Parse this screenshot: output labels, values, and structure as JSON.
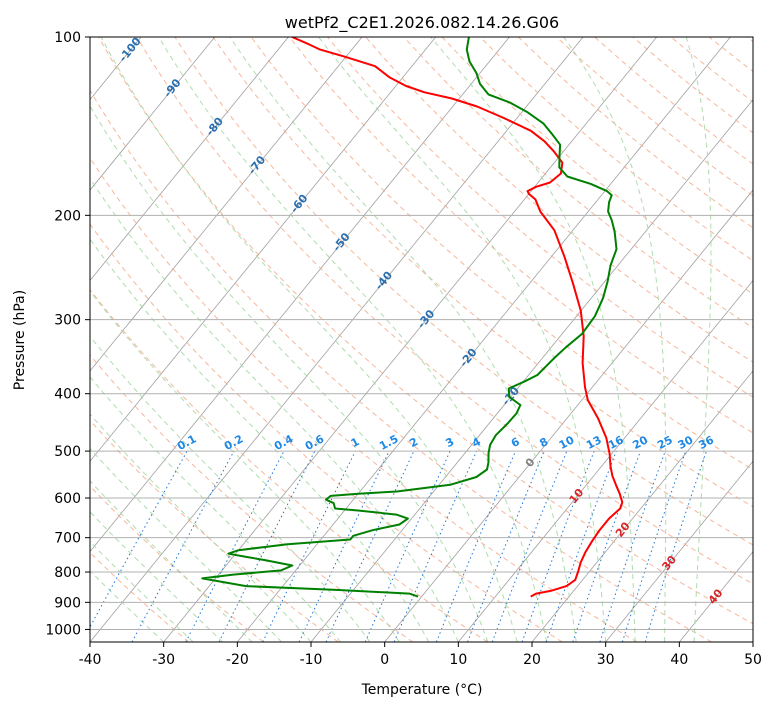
{
  "chart_data": {
    "type": "line",
    "title": "wetPf2_C2E1.2026.082.14.26.G06",
    "xlabel": "Temperature (°C)",
    "ylabel": "Pressure (hPa)",
    "xlim": [
      -40,
      50
    ],
    "ylim": [
      1050,
      100
    ],
    "x_ticks": [
      -40,
      -30,
      -20,
      -10,
      0,
      10,
      20,
      30,
      40,
      50
    ],
    "y_ticks": [
      1000,
      900,
      800,
      700,
      600,
      500,
      400,
      300,
      200,
      100
    ],
    "grid": true,
    "skewed_isotherm_labels": [
      -100,
      -90,
      -80,
      -70,
      -60,
      -50,
      -40,
      -30,
      -20,
      -10
    ],
    "skewed_isotherm_labels_red": [
      0,
      10,
      20,
      30,
      40
    ],
    "mixing_ratio_labels": [
      "0.1",
      "0.2",
      "0.4",
      "0.6",
      "1",
      "1.5",
      "2",
      "3",
      "4",
      "6",
      "8",
      "10",
      "13",
      "16",
      "20",
      "25",
      "30",
      "36"
    ],
    "colors": {
      "temperature": "#ff0000",
      "dewpoint": "#008000",
      "isotherm": "#a0a0a0",
      "dry_adiabat": "#f4a582",
      "moist_adiabat": "#a6d8a6",
      "mixing_ratio": "#1f77d4",
      "skew_label_blue": "#2a6fb0",
      "skew_label_red": "#d62728",
      "mix_label": "#1e88e5"
    },
    "series": [
      {
        "name": "Temperature",
        "points": [
          [
            14.8,
            880
          ],
          [
            15.2,
            870
          ],
          [
            17.0,
            860
          ],
          [
            18.5,
            845
          ],
          [
            19.0,
            825
          ],
          [
            18.5,
            800
          ],
          [
            17.8,
            770
          ],
          [
            17.3,
            740
          ],
          [
            17.0,
            710
          ],
          [
            16.8,
            680
          ],
          [
            16.8,
            650
          ],
          [
            17.2,
            625
          ],
          [
            16.8,
            610
          ],
          [
            15.5,
            590
          ],
          [
            14.0,
            570
          ],
          [
            12.5,
            550
          ],
          [
            11.2,
            530
          ],
          [
            9.7,
            505
          ],
          [
            7.5,
            475
          ],
          [
            4.2,
            440
          ],
          [
            0.8,
            410
          ],
          [
            -1.0,
            390
          ],
          [
            -4.0,
            355
          ],
          [
            -6.8,
            320
          ],
          [
            -10.0,
            290
          ],
          [
            -14.2,
            260
          ],
          [
            -18.2,
            235
          ],
          [
            -22.5,
            212
          ],
          [
            -26.5,
            197
          ],
          [
            -28.5,
            188
          ],
          [
            -30.0,
            184
          ],
          [
            -30.5,
            182
          ],
          [
            -29.8,
            179
          ],
          [
            -28.4,
            176
          ],
          [
            -27.9,
            170
          ],
          [
            -28.9,
            163
          ],
          [
            -31.3,
            156
          ],
          [
            -33.7,
            150
          ],
          [
            -36.7,
            144
          ],
          [
            -41.8,
            137
          ],
          [
            -46.7,
            131
          ],
          [
            -51.0,
            127
          ],
          [
            -55.4,
            124
          ],
          [
            -58.6,
            121
          ],
          [
            -61.8,
            117
          ],
          [
            -65.0,
            112
          ],
          [
            -70.1,
            108
          ],
          [
            -74.3,
            105
          ],
          [
            -76.3,
            103
          ],
          [
            -79.5,
            100
          ]
        ]
      },
      {
        "name": "Dewpoint",
        "points": [
          [
            -0.5,
            880
          ],
          [
            -2.0,
            870
          ],
          [
            -12.0,
            858
          ],
          [
            -25.0,
            845
          ],
          [
            -31.8,
            820
          ],
          [
            -28.0,
            808
          ],
          [
            -22.0,
            795
          ],
          [
            -21.0,
            780
          ],
          [
            -25.0,
            765
          ],
          [
            -28.0,
            755
          ],
          [
            -31.0,
            745
          ],
          [
            -30.0,
            735
          ],
          [
            -24.0,
            718
          ],
          [
            -16.0,
            705
          ],
          [
            -16.0,
            695
          ],
          [
            -14.0,
            680
          ],
          [
            -11.0,
            665
          ],
          [
            -10.5,
            650
          ],
          [
            -12.5,
            640
          ],
          [
            -18.0,
            630
          ],
          [
            -21.5,
            625
          ],
          [
            -22.3,
            612
          ],
          [
            -23.7,
            604
          ],
          [
            -23.5,
            595
          ],
          [
            -20.0,
            590
          ],
          [
            -15.0,
            585
          ],
          [
            -8.5,
            570
          ],
          [
            -5.8,
            553
          ],
          [
            -5.2,
            537
          ],
          [
            -5.8,
            522
          ],
          [
            -6.8,
            504
          ],
          [
            -7.5,
            488
          ],
          [
            -7.8,
            470
          ],
          [
            -7.5,
            450
          ],
          [
            -7.4,
            432
          ],
          [
            -7.8,
            418
          ],
          [
            -10.2,
            405
          ],
          [
            -11.2,
            392
          ],
          [
            -9.8,
            381
          ],
          [
            -8.8,
            372
          ],
          [
            -8.6,
            360
          ],
          [
            -8.4,
            348
          ],
          [
            -8.0,
            334
          ],
          [
            -7.3,
            317
          ],
          [
            -7.5,
            296
          ],
          [
            -8.4,
            276
          ],
          [
            -9.6,
            259
          ],
          [
            -11.0,
            243
          ],
          [
            -12.0,
            228
          ],
          [
            -14.2,
            213
          ],
          [
            -15.8,
            204
          ],
          [
            -17.3,
            197
          ],
          [
            -18.2,
            190
          ],
          [
            -18.6,
            185
          ],
          [
            -19.7,
            182
          ],
          [
            -22.7,
            177
          ],
          [
            -26.7,
            172
          ],
          [
            -28.8,
            166
          ],
          [
            -30.0,
            159
          ],
          [
            -31.2,
            152
          ],
          [
            -33.4,
            146
          ],
          [
            -35.8,
            140
          ],
          [
            -39.2,
            134
          ],
          [
            -42.7,
            129
          ],
          [
            -46.5,
            125
          ],
          [
            -48.8,
            120
          ],
          [
            -50.5,
            115
          ],
          [
            -52.7,
            110
          ],
          [
            -54.4,
            105
          ],
          [
            -55.5,
            100
          ]
        ]
      }
    ]
  }
}
